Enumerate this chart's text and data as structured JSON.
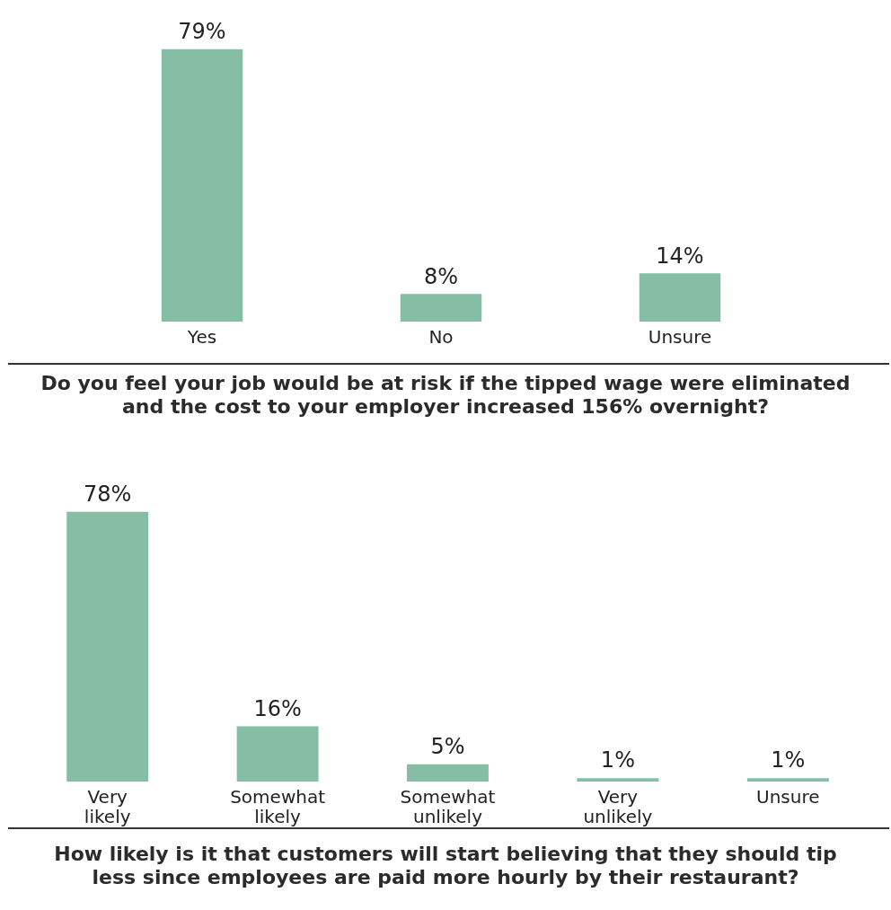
{
  "chart_data": [
    {
      "type": "bar",
      "title": "Do you feel your job would be at risk if the tipped wage were eliminated and the cost to your employer increased 156% overnight?",
      "categories": [
        "Yes",
        "No",
        "Unsure"
      ],
      "values": [
        79,
        8,
        14
      ],
      "value_labels": [
        "79%",
        "8%",
        "14%"
      ],
      "color": "#86bea5"
    },
    {
      "type": "bar",
      "title": "How likely is it that customers will start believing that they should tip less since employees are paid more hourly by their restaurant?",
      "categories": [
        "Very likely",
        "Somewhat likely",
        "Somewhat unlikely",
        "Very unlikely",
        "Unsure"
      ],
      "values": [
        78,
        16,
        5,
        1,
        1
      ],
      "value_labels": [
        "78%",
        "16%",
        "5%",
        "1%",
        "1%"
      ],
      "color": "#86bea5"
    }
  ]
}
